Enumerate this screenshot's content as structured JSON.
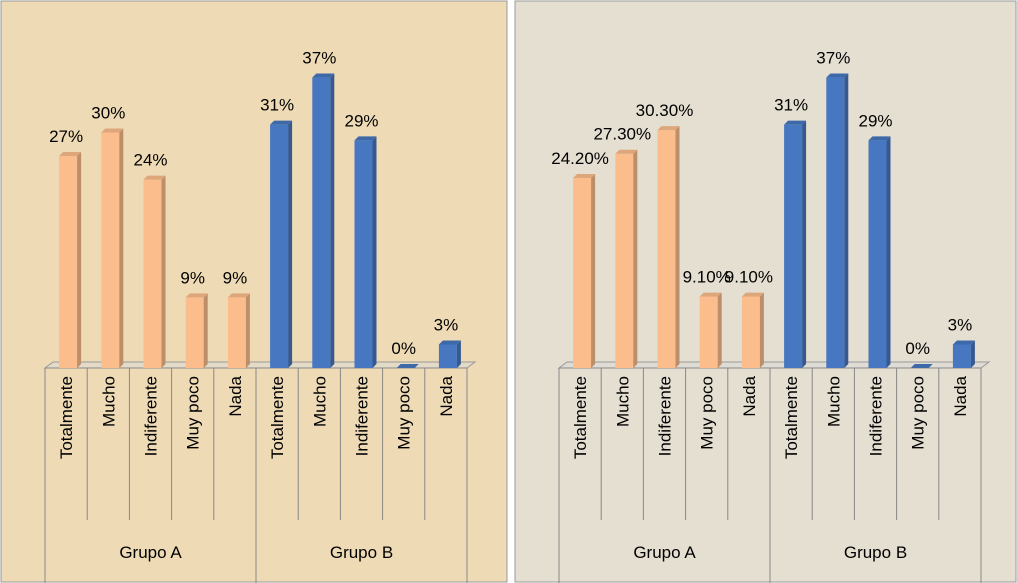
{
  "chart_data": [
    {
      "type": "bar",
      "ylim": [
        0,
        40
      ],
      "groups": [
        {
          "name": "Grupo A",
          "color": "#fbbd8c",
          "categories": [
            "Totalmente",
            "Mucho",
            "Indiferente",
            "Muy poco",
            "Nada"
          ],
          "values": [
            27,
            30,
            24,
            9,
            9
          ],
          "value_labels": [
            "27%",
            "30%",
            "24%",
            "9%",
            "9%"
          ]
        },
        {
          "name": "Grupo B",
          "color": "#4677c0",
          "categories": [
            "Totalmente",
            "Mucho",
            "Indiferente",
            "Muy poco",
            "Nada"
          ],
          "values": [
            31,
            37,
            29,
            0,
            3
          ],
          "value_labels": [
            "31%",
            "37%",
            "29%",
            "0%",
            "3%"
          ]
        }
      ]
    },
    {
      "type": "bar",
      "ylim": [
        0,
        40
      ],
      "groups": [
        {
          "name": "Grupo A",
          "color": "#fbbd8c",
          "categories": [
            "Totalmente",
            "Mucho",
            "Indiferente",
            "Muy poco",
            "Nada"
          ],
          "values": [
            24.2,
            27.3,
            30.3,
            9.1,
            9.1
          ],
          "value_labels": [
            "24.20%",
            "27.30%",
            "30.30%",
            "9.10%",
            "9.10%"
          ]
        },
        {
          "name": "Grupo B",
          "color": "#4677c0",
          "categories": [
            "Totalmente",
            "Mucho",
            "Indiferente",
            "Muy poco",
            "Nada"
          ],
          "values": [
            31,
            37,
            29,
            0,
            3
          ],
          "value_labels": [
            "31%",
            "37%",
            "29%",
            "0%",
            "3%"
          ]
        }
      ]
    }
  ]
}
